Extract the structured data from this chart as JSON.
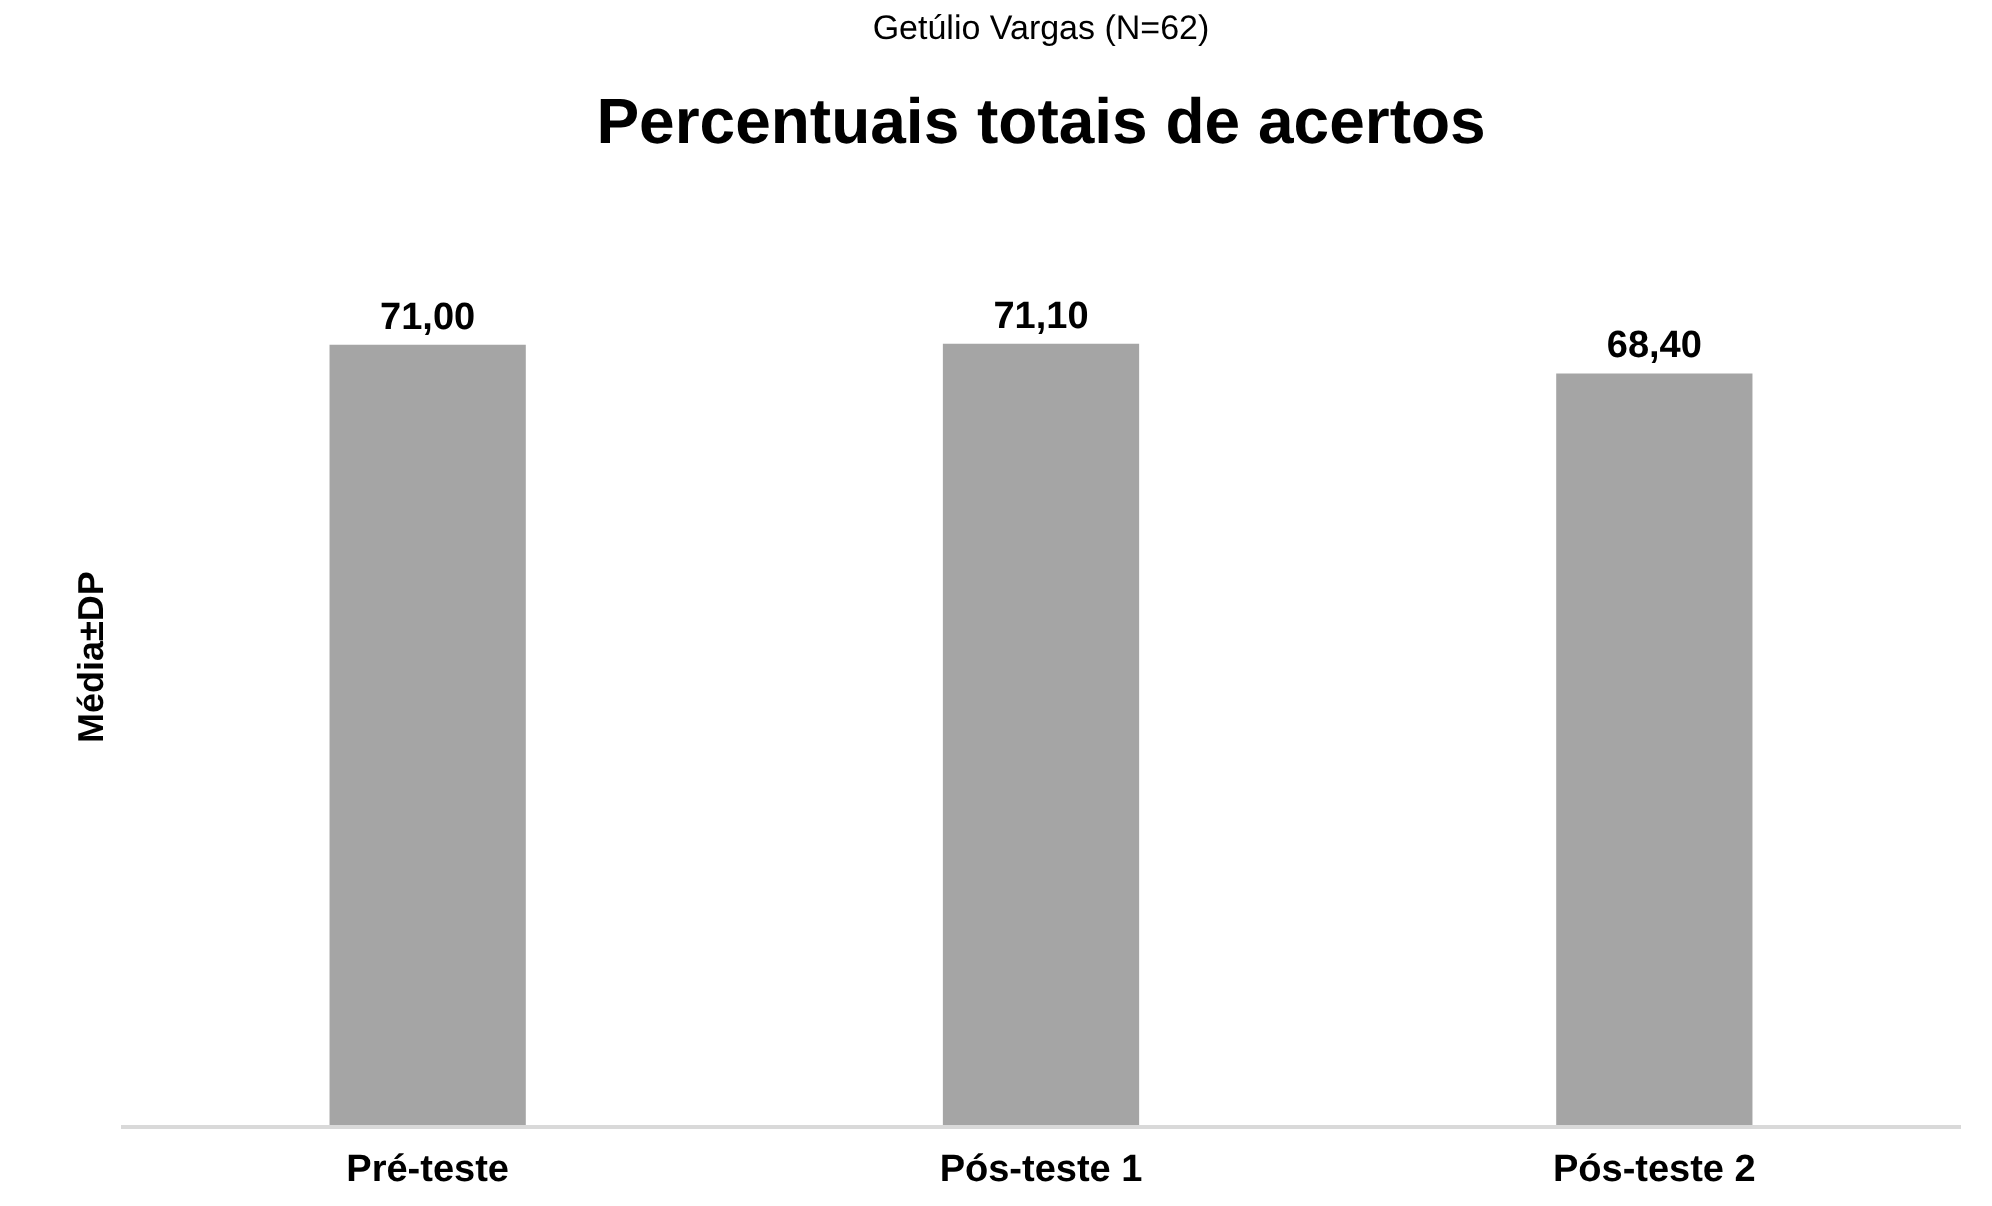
{
  "chart_data": {
    "type": "bar",
    "title": "Percentuais totais de acertos",
    "ylabel": "Média±DP",
    "annotations": [
      "Getúlio Vargas (N=62)"
    ],
    "categories": [
      "Pré-teste",
      "Pós-teste 1",
      "Pós-teste 2"
    ],
    "values": [
      71.0,
      71.1,
      68.4
    ],
    "color": "#a5a5a5",
    "value_labels": [
      "71,00",
      "71,10",
      "68,40"
    ],
    "grid": false
  }
}
